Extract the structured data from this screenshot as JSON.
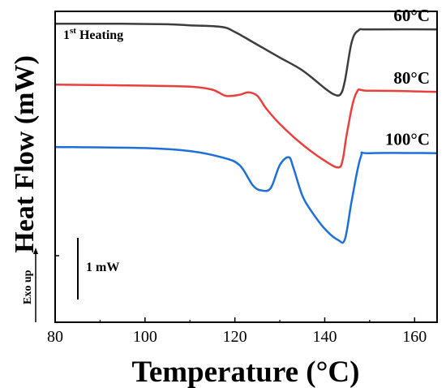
{
  "chart_data": {
    "type": "line",
    "xlabel": "Temperature (°C)",
    "ylabel": "Heat Flow (mW)",
    "xlim": [
      80,
      165
    ],
    "x_ticks": [
      "80",
      "100",
      "120",
      "140",
      "160"
    ],
    "annotation": {
      "prefix": "1",
      "superscript": "st",
      "suffix": " Heating"
    },
    "scale_bar_label": "1 mW",
    "exo_label": "Exo up",
    "grid": false,
    "series": [
      {
        "name": "60°C",
        "color": "#3d3d3d",
        "x": [
          80,
          95,
          105,
          110,
          117,
          120,
          125,
          130,
          135,
          140,
          142,
          143.5,
          144.5,
          146,
          147.5,
          150,
          165
        ],
        "y": [
          2.71,
          2.71,
          2.7,
          2.68,
          2.65,
          2.55,
          2.3,
          2.05,
          1.8,
          1.45,
          1.33,
          1.33,
          1.6,
          2.35,
          2.58,
          2.6,
          2.6
        ]
      },
      {
        "name": "80°C",
        "color": "#e8403c",
        "x": [
          80,
          100,
          110,
          115,
          118,
          121,
          123,
          125,
          127,
          130,
          135,
          140,
          143,
          144,
          145,
          147,
          150,
          165
        ],
        "y": [
          1.52,
          1.5,
          1.48,
          1.42,
          1.3,
          1.32,
          1.37,
          1.3,
          1.05,
          0.75,
          0.35,
          0.03,
          -0.1,
          0.05,
          0.6,
          1.35,
          1.4,
          1.38
        ]
      },
      {
        "name": "100°C",
        "color": "#1e6fd8",
        "x": [
          80,
          100,
          110,
          117,
          121,
          124,
          126,
          128,
          130,
          132,
          133,
          135,
          137,
          140,
          143,
          144.5,
          146,
          148,
          150,
          165
        ],
        "y": [
          0.3,
          0.28,
          0.22,
          0.1,
          -0.05,
          -0.45,
          -0.55,
          -0.5,
          -0.05,
          0.1,
          -0.1,
          -0.65,
          -0.95,
          -1.3,
          -1.52,
          -1.5,
          -0.75,
          0.1,
          0.18,
          0.18
        ]
      }
    ]
  }
}
